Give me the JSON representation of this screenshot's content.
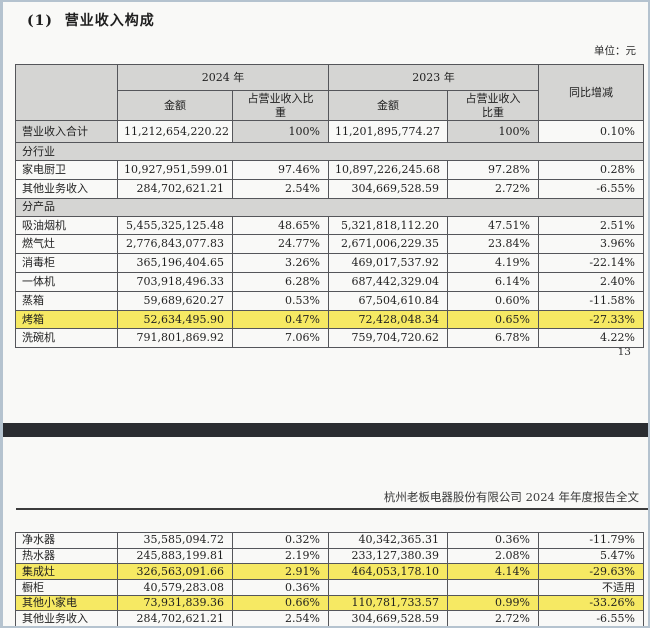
{
  "page": {
    "heading": "(1)  营业收入构成",
    "unit_label": "单位：元",
    "page_number": "13",
    "footer_title": "杭州老板电器股份有限公司 2024 年年度报告全文"
  },
  "colors": {
    "highlight_yellow": "#f6e963",
    "header_gray": "#d5d5d3",
    "separator_dark": "#2b2d31",
    "frame_border": "#b5c3cf"
  },
  "table_header": {
    "year_2024": "2024 年",
    "year_2023": "2023 年",
    "amount_2024": "金额",
    "share_2024": "占营业收入比重",
    "amount_2023": "金额",
    "share_2023": "占营业收入比重",
    "yoy": "同比增减"
  },
  "table1": {
    "rows": [
      {
        "type": "total",
        "label": "营业收入合计",
        "a24": "11,212,654,220.22",
        "p24": "100%",
        "a23": "11,201,895,774.27",
        "p23": "100%",
        "yoy": "0.10%",
        "highlight": false
      },
      {
        "type": "section",
        "label": "分行业",
        "highlight": false
      },
      {
        "type": "data",
        "label": "家电厨卫",
        "a24": "10,927,951,599.01",
        "p24": "97.46%",
        "a23": "10,897,226,245.68",
        "p23": "97.28%",
        "yoy": "0.28%",
        "highlight": false
      },
      {
        "type": "data",
        "label": "其他业务收入",
        "a24": "284,702,621.21",
        "p24": "2.54%",
        "a23": "304,669,528.59",
        "p23": "2.72%",
        "yoy": "-6.55%",
        "highlight": false
      },
      {
        "type": "section",
        "label": "分产品",
        "highlight": false
      },
      {
        "type": "data",
        "label": "吸油烟机",
        "a24": "5,455,325,125.48",
        "p24": "48.65%",
        "a23": "5,321,818,112.20",
        "p23": "47.51%",
        "yoy": "2.51%",
        "highlight": false
      },
      {
        "type": "data",
        "label": "燃气灶",
        "a24": "2,776,843,077.83",
        "p24": "24.77%",
        "a23": "2,671,006,229.35",
        "p23": "23.84%",
        "yoy": "3.96%",
        "highlight": false
      },
      {
        "type": "data",
        "label": "消毒柜",
        "a24": "365,196,404.65",
        "p24": "3.26%",
        "a23": "469,017,537.92",
        "p23": "4.19%",
        "yoy": "-22.14%",
        "highlight": false
      },
      {
        "type": "data",
        "label": "一体机",
        "a24": "703,918,496.33",
        "p24": "6.28%",
        "a23": "687,442,329.04",
        "p23": "6.14%",
        "yoy": "2.40%",
        "highlight": false
      },
      {
        "type": "data",
        "label": "蒸箱",
        "a24": "59,689,620.27",
        "p24": "0.53%",
        "a23": "67,504,610.84",
        "p23": "0.60%",
        "yoy": "-11.58%",
        "highlight": false
      },
      {
        "type": "data",
        "label": "烤箱",
        "a24": "52,634,495.90",
        "p24": "0.47%",
        "a23": "72,428,048.34",
        "p23": "0.65%",
        "yoy": "-27.33%",
        "highlight": true
      },
      {
        "type": "data",
        "label": "洗碗机",
        "a24": "791,801,869.92",
        "p24": "7.06%",
        "a23": "759,704,720.62",
        "p23": "6.78%",
        "yoy": "4.22%",
        "highlight": false
      }
    ]
  },
  "table2": {
    "rows": [
      {
        "type": "data",
        "label": "净水器",
        "a24": "35,585,094.72",
        "p24": "0.32%",
        "a23": "40,342,365.31",
        "p23": "0.36%",
        "yoy": "-11.79%",
        "highlight": false
      },
      {
        "type": "data",
        "label": "热水器",
        "a24": "245,883,199.81",
        "p24": "2.19%",
        "a23": "233,127,380.39",
        "p23": "2.08%",
        "yoy": "5.47%",
        "highlight": false
      },
      {
        "type": "data",
        "label": "集成灶",
        "a24": "326,563,091.66",
        "p24": "2.91%",
        "a23": "464,053,178.10",
        "p23": "4.14%",
        "yoy": "-29.63%",
        "highlight": true
      },
      {
        "type": "data",
        "label": "橱柜",
        "a24": "40,579,283.08",
        "p24": "0.36%",
        "a23": "",
        "p23": "",
        "yoy": "不适用",
        "highlight": false
      },
      {
        "type": "data",
        "label": "其他小家电",
        "a24": "73,931,839.36",
        "p24": "0.66%",
        "a23": "110,781,733.57",
        "p23": "0.99%",
        "yoy": "-33.26%",
        "highlight": true
      },
      {
        "type": "data",
        "label": "其他业务收入",
        "a24": "284,702,621.21",
        "p24": "2.54%",
        "a23": "304,669,528.59",
        "p23": "2.72%",
        "yoy": "-6.55%",
        "highlight": false
      }
    ]
  }
}
